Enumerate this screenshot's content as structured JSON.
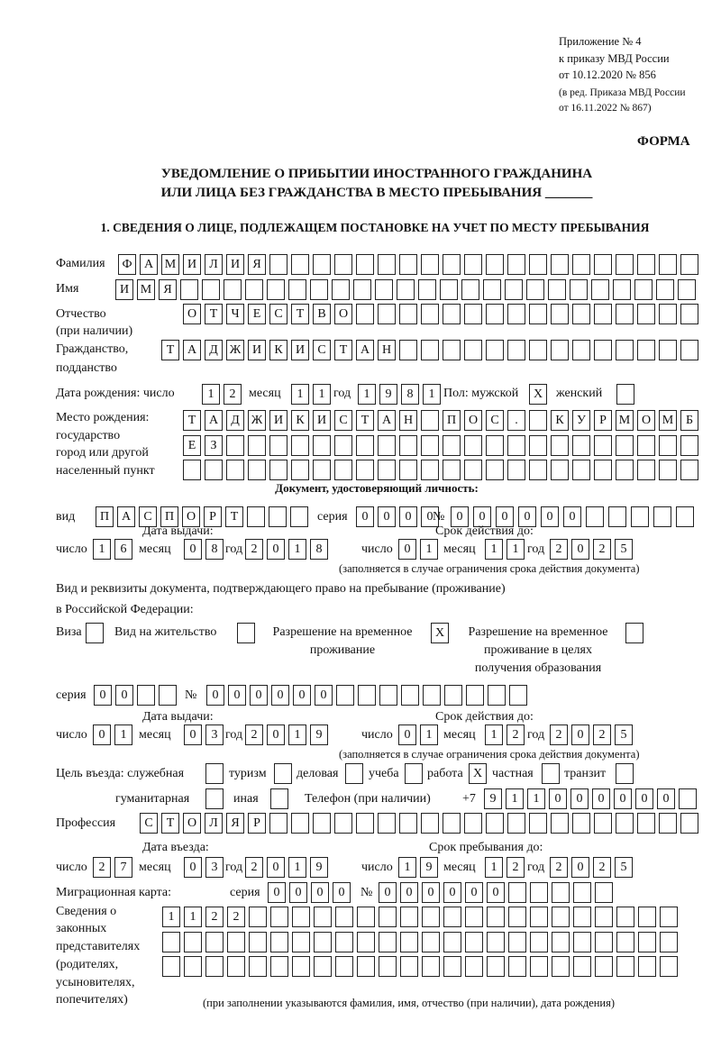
{
  "header": {
    "appendix": "Приложение № 4",
    "order": "к приказу МВД России",
    "order_date": "от 10.12.2020 № 856",
    "edition1": "(в ред. Приказа МВД России",
    "edition2": "от 16.11.2022 № 867)",
    "form_label": "ФОРМА",
    "title_line1": "УВЕДОМЛЕНИЕ О ПРИБЫТИИ ИНОСТРАННОГО ГРАЖДАНИНА",
    "title_line2": "ИЛИ ЛИЦА БЕЗ ГРАЖДАНСТВА В МЕСТО ПРЕБЫВАНИЯ _______",
    "section1": "1. СВЕДЕНИЯ О ЛИЦЕ, ПОДЛЕЖАЩЕМ ПОСТАНОВКЕ НА УЧЕТ ПО МЕСТУ ПРЕБЫВАНИЯ"
  },
  "labels": {
    "surname": "Фамилия",
    "name": "Имя",
    "patronymic1": "Отчество",
    "patronymic2": "(при наличии)",
    "citizenship1": "Гражданство,",
    "citizenship2": "подданство",
    "birth_date": "Дата рождения:  число",
    "month": "месяц",
    "year": "год",
    "day": "число",
    "sex_male": "Пол: мужской",
    "sex_female": "женский",
    "birthplace1": "Место рождения:",
    "birthplace2": "государство",
    "birthplace3": "город или другой",
    "birthplace4": "населенный пункт",
    "id_doc": "Документ, удостоверяющий личность:",
    "kind": "вид",
    "series": "серия",
    "number": "№",
    "issue_date": "Дата выдачи:",
    "valid_until": "Срок действия до:",
    "valid_note": "(заполняется в случае ограничения срока действия документа)",
    "right_doc1": "Вид и реквизиты документа, подтверждающего право на пребывание (проживание)",
    "right_doc2": "в Российской Федерации:",
    "visa": "Виза",
    "residence": "Вид на жительство",
    "trp1": "Разрешение на временное",
    "trp2": "проживание",
    "trp_edu1": "Разрешение на временное",
    "trp_edu2": "проживание в целях",
    "trp_edu3": "получения образования",
    "purpose": "Цель въезда: служебная",
    "tourism": "туризм",
    "business": "деловая",
    "study": "учеба",
    "work": "работа",
    "private": "частная",
    "transit": "транзит",
    "humanitarian": "гуманитарная",
    "other": "иная",
    "phone": "Телефон (при наличии)",
    "phone_prefix": "+7",
    "profession": "Профессия",
    "entry_date": "Дата въезда:",
    "stay_until": "Срок пребывания до:",
    "migration_card": "Миграционная карта:",
    "reps1": "Сведения о",
    "reps2": "законных",
    "reps3": "представителях",
    "reps4": "(родителях,",
    "reps5": "усыновителях,",
    "reps6": "попечителях)",
    "reps_note": "(при заполнении указываются фамилия, имя, отчество (при наличии), дата рождения)"
  },
  "values": {
    "surname": "ФАМИЛИЯ",
    "name": "ИМЯ",
    "patronymic": "ОТЧЕСТВО",
    "citizenship": "ТАДЖИКИСТАН",
    "birth_day": "12",
    "birth_month": "11",
    "birth_year": "1981",
    "sex_male": "X",
    "sex_female": "",
    "birthplace_1": "ТАДЖИКИСТАН ПОС. КУРМОМБ",
    "birthplace_2": "ЕЗ",
    "birthplace_3": "",
    "doc_kind": "ПАСПОРТ",
    "doc_series": "0000",
    "doc_number": "000000",
    "doc_issue_day": "16",
    "doc_issue_month": "08",
    "doc_issue_year": "2018",
    "doc_valid_day": "01",
    "doc_valid_month": "11",
    "doc_valid_year": "2025",
    "visa": "",
    "residence_permit": "",
    "temp_residence": "X",
    "temp_residence_edu": "",
    "right_series": "00",
    "right_number": "000000",
    "right_issue_day": "01",
    "right_issue_month": "03",
    "right_issue_year": "2019",
    "right_valid_day": "01",
    "right_valid_month": "12",
    "right_valid_year": "2025",
    "purpose_official": "",
    "purpose_tourism": "",
    "purpose_business": "",
    "purpose_study": "",
    "purpose_work": "X",
    "purpose_private": "",
    "purpose_transit": "",
    "purpose_humanitarian": "",
    "purpose_other": "",
    "phone": "911000000",
    "profession": "СТОЛЯР",
    "entry_day": "27",
    "entry_month": "03",
    "entry_year": "2019",
    "stay_day": "19",
    "stay_month": "12",
    "stay_year": "2025",
    "mig_series": "0000",
    "mig_number": "000000",
    "reps_1": "1122",
    "reps_2": "",
    "reps_3": ""
  }
}
